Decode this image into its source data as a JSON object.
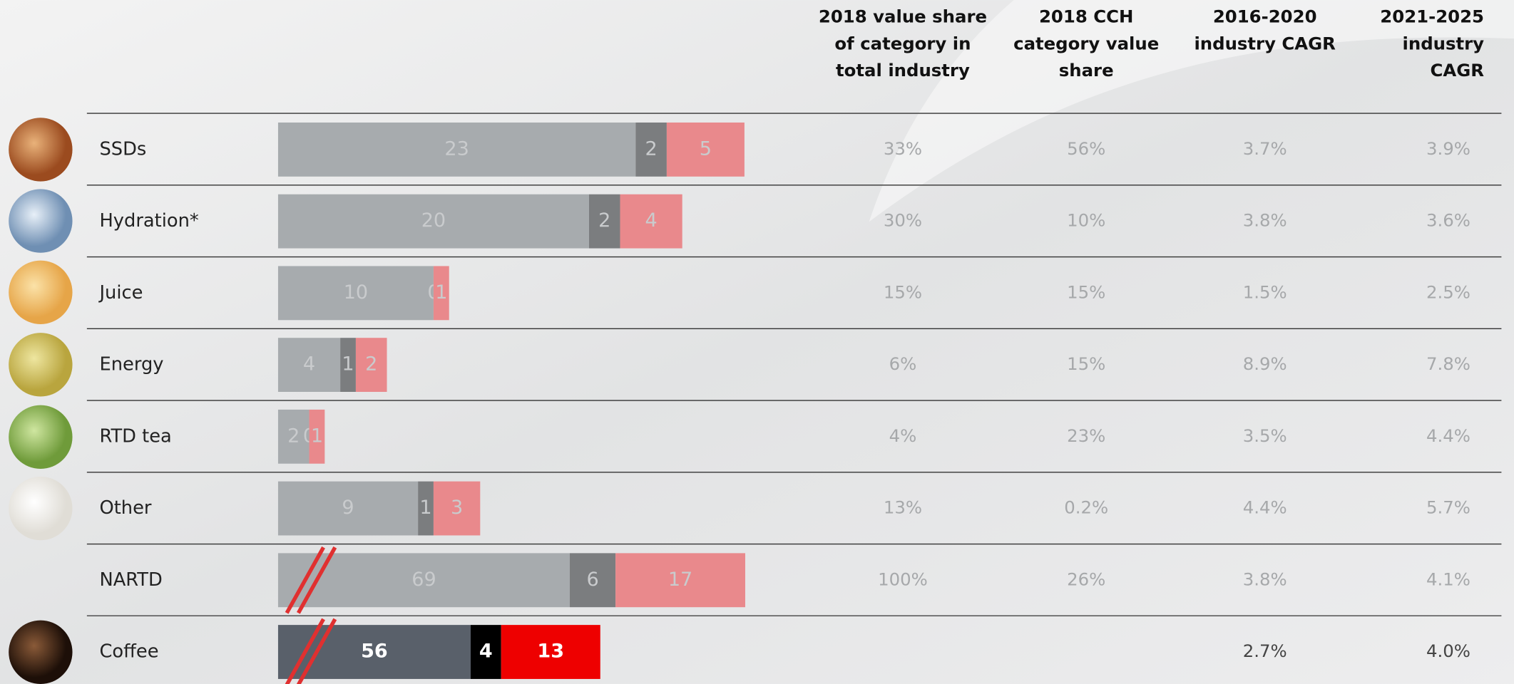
{
  "chart_data": {
    "type": "stacked_bar_table",
    "categories": [
      "SSDs",
      "Hydration*",
      "Juice",
      "Energy",
      "RTD tea",
      "Other",
      "NARTD",
      "Coffee"
    ],
    "series": [
      {
        "colors": [
          "#a7abae",
          "#a7abae",
          "#a7abae",
          "#a7abae",
          "#a7abae",
          "#a7abae",
          "#a7abae",
          "#59606a"
        ],
        "values": [
          23,
          20,
          10,
          4,
          2,
          9,
          69,
          56
        ]
      },
      {
        "colors": [
          "#7b7d7f",
          "#7b7d7f",
          "#7b7d7f",
          "#7b7d7f",
          "#7b7d7f",
          "#7b7d7f",
          "#7b7d7f",
          "#000000"
        ],
        "values": [
          2,
          2,
          0,
          1,
          0,
          1,
          6,
          4
        ]
      },
      {
        "colors": [
          "#e9898c",
          "#e9898c",
          "#e9898c",
          "#e9898c",
          "#e9898c",
          "#e9898c",
          "#e9898c",
          "#ee0000"
        ],
        "values": [
          5,
          4,
          1,
          2,
          1,
          3,
          17,
          13
        ]
      }
    ],
    "broken_rows": [
      6,
      7
    ],
    "table": {
      "headers": [
        [
          "2018 value share",
          "of category in",
          "total industry"
        ],
        [
          "2018 CCH",
          "category value",
          "share"
        ],
        [
          "2016-2020",
          "industry CAGR"
        ],
        [
          "2021-2025",
          "industry",
          "CAGR"
        ]
      ],
      "rows": [
        [
          "33%",
          "56%",
          "3.7%",
          "3.9%"
        ],
        [
          "30%",
          "10%",
          "3.8%",
          "3.6%"
        ],
        [
          "15%",
          "15%",
          "1.5%",
          "2.5%"
        ],
        [
          "6%",
          "15%",
          "8.9%",
          "7.8%"
        ],
        [
          "4%",
          "23%",
          "3.5%",
          "4.4%"
        ],
        [
          "13%",
          "0.2%",
          "4.4%",
          "5.7%"
        ],
        [
          "100%",
          "26%",
          "3.8%",
          "4.1%"
        ],
        [
          null,
          null,
          "2.7%",
          "4.0%"
        ]
      ]
    }
  }
}
